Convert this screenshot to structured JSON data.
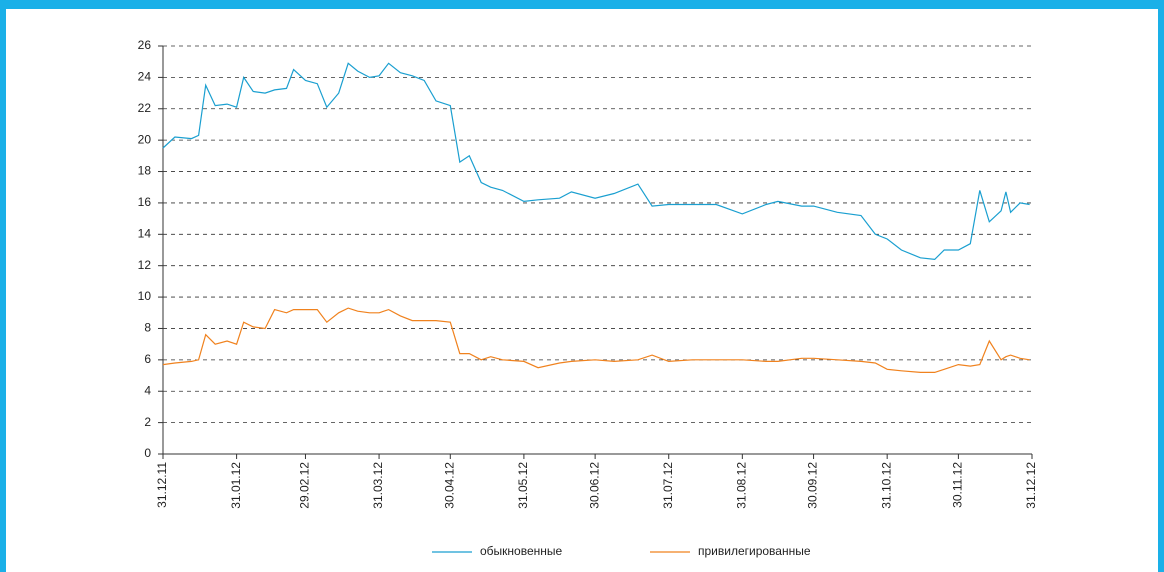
{
  "chart_data": {
    "type": "line",
    "x": [
      "31.12.11",
      "05.01.12",
      "12.01.12",
      "15.01.12",
      "18.01.12",
      "22.01.12",
      "27.01.12",
      "31.01.12",
      "03.02.12",
      "07.02.12",
      "12.02.12",
      "16.02.12",
      "21.02.12",
      "24.02.12",
      "29.02.12",
      "05.03.12",
      "09.03.12",
      "14.03.12",
      "18.03.12",
      "22.03.12",
      "27.03.12",
      "31.03.12",
      "04.04.12",
      "09.04.12",
      "14.04.12",
      "19.04.12",
      "24.04.12",
      "30.04.12",
      "04.05.12",
      "08.05.12",
      "13.05.12",
      "17.05.12",
      "22.05.12",
      "31.05.12",
      "06.06.12",
      "15.06.12",
      "20.06.12",
      "30.06.12",
      "08.07.12",
      "18.07.12",
      "24.07.12",
      "31.07.12",
      "10.08.12",
      "20.08.12",
      "31.08.12",
      "10.09.12",
      "15.09.12",
      "25.09.12",
      "30.09.12",
      "10.10.12",
      "20.10.12",
      "26.10.12",
      "31.10.12",
      "06.11.12",
      "14.11.12",
      "20.11.12",
      "24.11.12",
      "30.11.12",
      "05.12.12",
      "09.12.12",
      "13.12.12",
      "18.12.12",
      "20.12.12",
      "22.12.12",
      "26.12.12",
      "30.12.12"
    ],
    "series": [
      {
        "name": "обыкновенные",
        "color": "#1a9fd0",
        "values": [
          19.5,
          20.2,
          20.1,
          20.3,
          23.5,
          22.2,
          22.3,
          22.1,
          24.0,
          23.1,
          23.0,
          23.2,
          23.3,
          24.5,
          23.8,
          23.6,
          22.1,
          23.0,
          24.9,
          24.4,
          24.0,
          24.1,
          24.9,
          24.3,
          24.1,
          23.8,
          22.5,
          22.2,
          18.6,
          19.0,
          17.3,
          17.0,
          16.8,
          16.1,
          16.2,
          16.3,
          16.7,
          16.3,
          16.6,
          17.2,
          15.8,
          15.9,
          15.9,
          15.9,
          15.3,
          15.9,
          16.1,
          15.8,
          15.8,
          15.4,
          15.2,
          14.0,
          13.7,
          13.0,
          12.5,
          12.4,
          13.0,
          13.0,
          13.4,
          16.8,
          14.8,
          15.5,
          16.7,
          15.4,
          16.0,
          15.9
        ]
      },
      {
        "name": "привилегированные",
        "color": "#f0821e",
        "values": [
          5.7,
          5.8,
          5.9,
          6.0,
          7.6,
          7.0,
          7.2,
          7.0,
          8.4,
          8.1,
          8.0,
          9.2,
          9.0,
          9.2,
          9.2,
          9.2,
          8.4,
          9.0,
          9.3,
          9.1,
          9.0,
          9.0,
          9.2,
          8.8,
          8.5,
          8.5,
          8.5,
          8.4,
          6.4,
          6.4,
          6.0,
          6.2,
          6.0,
          5.9,
          5.5,
          5.8,
          5.9,
          6.0,
          5.9,
          6.0,
          6.3,
          5.9,
          6.0,
          6.0,
          6.0,
          5.9,
          5.9,
          6.1,
          6.1,
          6.0,
          5.9,
          5.8,
          5.4,
          5.3,
          5.2,
          5.2,
          5.4,
          5.7,
          5.6,
          5.7,
          7.2,
          6.0,
          6.2,
          6.3,
          6.1,
          6.0
        ]
      }
    ],
    "ylim": [
      0,
      26
    ],
    "yticks": [
      0,
      2,
      4,
      6,
      8,
      10,
      12,
      14,
      16,
      18,
      20,
      22,
      24,
      26
    ],
    "xlim": [
      "31.12.11",
      "31.12.12"
    ],
    "xticks": [
      "31.12.11",
      "31.01.12",
      "29.02.12",
      "31.03.12",
      "30.04.12",
      "31.05.12",
      "30.06.12",
      "31.07.12",
      "31.08.12",
      "30.09.12",
      "31.10.12",
      "30.11.12",
      "31.12.12"
    ],
    "grid": true,
    "legend": "bottom"
  }
}
